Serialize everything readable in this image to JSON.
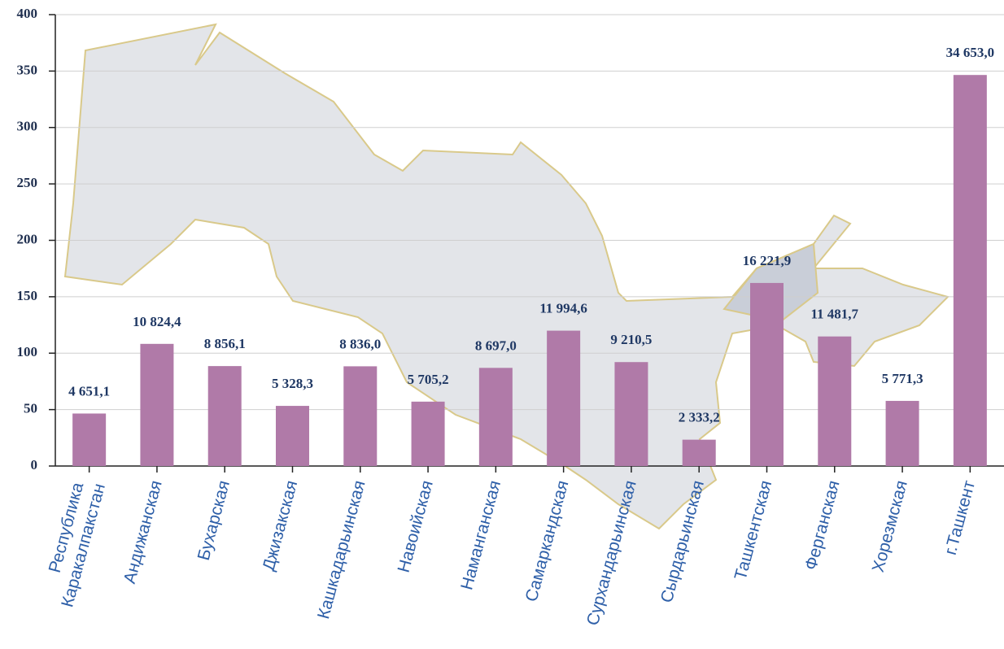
{
  "chart_data": {
    "type": "bar",
    "categories": [
      "Республика Каракалпакстан",
      "Андижанская",
      "Бухарская",
      "Джизакская",
      "Кашкадарьинская",
      "Навоийская",
      "Наманганская",
      "Самаркандская",
      "Сурхандарьинская",
      "Сырдарьинская",
      "Ташкентская",
      "Ферганская",
      "Хорезмская",
      "г.Ташкент"
    ],
    "values": [
      46.511,
      108.244,
      88.561,
      53.283,
      88.36,
      57.052,
      86.97,
      119.946,
      92.105,
      23.332,
      162.219,
      114.817,
      57.713,
      346.53
    ],
    "value_labels": [
      "4 651,1",
      "10 824,4",
      "8 856,1",
      "5 328,3",
      "8 836,0",
      "5 705,2",
      "8 697,0",
      "11 994,6",
      "9 210,5",
      "2 333,2",
      "16 221,9",
      "11 481,7",
      "5 771,3",
      "34 653,0"
    ],
    "color": "#b07aa8",
    "ylim": [
      0,
      400
    ],
    "yticks": [
      0,
      50,
      100,
      150,
      200,
      250,
      300,
      350,
      400
    ],
    "grid": true
  }
}
